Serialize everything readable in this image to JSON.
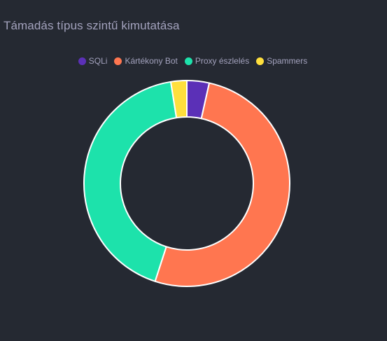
{
  "card": {
    "title": "Támadás típus szintű kimutatása"
  },
  "chart_data": {
    "type": "pie",
    "variant": "donut",
    "title": "Támadás típus szintű kimutatása",
    "legend_position": "top-center",
    "series": [
      {
        "name": "SQLi",
        "value": 3.5,
        "color": "#5b30b7"
      },
      {
        "name": "Kártékony Bot",
        "value": 51.5,
        "color": "#ff7650"
      },
      {
        "name": "Proxy észlelés",
        "value": 42.5,
        "color": "#1de2ab"
      },
      {
        "name": "Spammers",
        "value": 2.5,
        "color": "#ffdf3d"
      }
    ]
  }
}
